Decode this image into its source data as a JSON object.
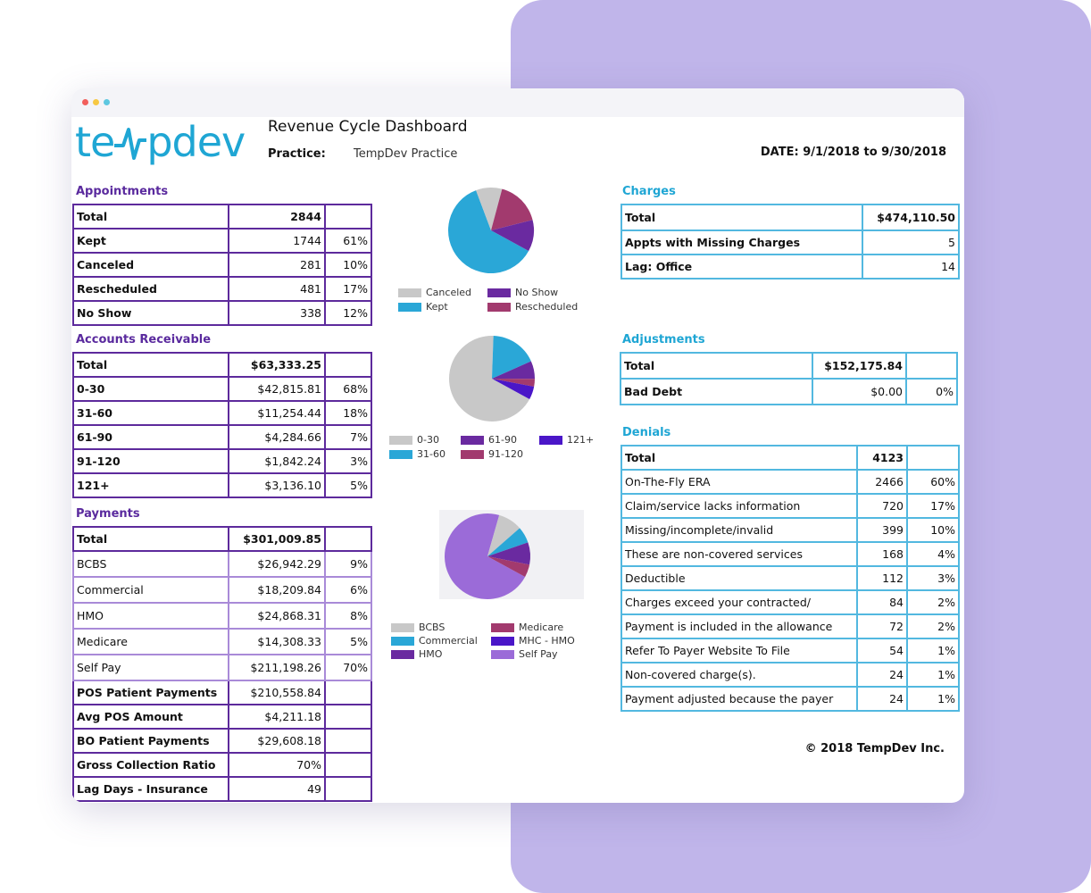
{
  "header": {
    "logo_text_left": "te",
    "logo_text_right": "pdev",
    "title": "Revenue Cycle Dashboard",
    "practice_label": "Practice:",
    "practice_value": "TempDev Practice",
    "date": "DATE: 9/1/2018 to 9/30/2018"
  },
  "colors": {
    "canceled": "#c8c8c8",
    "kept": "#2aa7d7",
    "no_show": "#6a2aa0",
    "rescheduled": "#a23a6e",
    "bucket_121": "#4a16c8",
    "self_pay": "#9b6bd8",
    "accent_purple": "#5d2a9c",
    "accent_blue": "#52b8e0"
  },
  "appointments": {
    "title": "Appointments",
    "rows": [
      {
        "label": "Total",
        "value": "2844",
        "pct": ""
      },
      {
        "label": "Kept",
        "value": "1744",
        "pct": "61%"
      },
      {
        "label": "Canceled",
        "value": "281",
        "pct": "10%"
      },
      {
        "label": "Rescheduled",
        "value": "481",
        "pct": "17%"
      },
      {
        "label": "No Show",
        "value": "338",
        "pct": "12%"
      }
    ],
    "legend": [
      "Canceled",
      "No Show",
      "Kept",
      "Rescheduled"
    ]
  },
  "ar": {
    "title": "Accounts Receivable",
    "rows": [
      {
        "label": "Total",
        "value": "$63,333.25",
        "pct": ""
      },
      {
        "label": "0-30",
        "value": "$42,815.81",
        "pct": "68%"
      },
      {
        "label": "31-60",
        "value": "$11,254.44",
        "pct": "18%"
      },
      {
        "label": "61-90",
        "value": "$4,284.66",
        "pct": "7%"
      },
      {
        "label": "91-120",
        "value": "$1,842.24",
        "pct": "3%"
      },
      {
        "label": "121+",
        "value": "$3,136.10",
        "pct": "5%"
      }
    ],
    "legend": [
      "0-30",
      "61-90",
      "121+",
      "31-60",
      "91-120"
    ]
  },
  "payments": {
    "title": "Payments",
    "rows": [
      {
        "label": "Total",
        "value": "$301,009.85",
        "pct": ""
      },
      {
        "label": "BCBS",
        "value": "$26,942.29",
        "pct": "9%"
      },
      {
        "label": "Commercial",
        "value": "$18,209.84",
        "pct": "6%"
      },
      {
        "label": "HMO",
        "value": "$24,868.31",
        "pct": "8%"
      },
      {
        "label": "Medicare",
        "value": "$14,308.33",
        "pct": "5%"
      },
      {
        "label": "Self Pay",
        "value": "$211,198.26",
        "pct": "70%"
      },
      {
        "label": "POS Patient Payments",
        "value": "$210,558.84",
        "pct": ""
      },
      {
        "label": "Avg POS Amount",
        "value": "$4,211.18",
        "pct": ""
      },
      {
        "label": "BO Patient Payments",
        "value": "$29,608.18",
        "pct": ""
      },
      {
        "label": "Gross Collection Ratio",
        "value": "70%",
        "pct": ""
      },
      {
        "label": "Lag Days - Insurance",
        "value": "49",
        "pct": ""
      }
    ],
    "legend": [
      "BCBS",
      "Medicare",
      "Commercial",
      "MHC - HMO",
      "HMO",
      "Self Pay"
    ]
  },
  "charges": {
    "title": "Charges",
    "rows": [
      {
        "label": "Total",
        "value": "$474,110.50"
      },
      {
        "label": "Appts with Missing Charges",
        "value": "5"
      },
      {
        "label": "Lag: Office",
        "value": "14"
      }
    ]
  },
  "adjustments": {
    "title": "Adjustments",
    "rows": [
      {
        "label": "Total",
        "value": "$152,175.84",
        "pct": ""
      },
      {
        "label": "Bad Debt",
        "value": "$0.00",
        "pct": "0%"
      }
    ]
  },
  "denials": {
    "title": "Denials",
    "rows": [
      {
        "label": "Total",
        "value": "4123",
        "pct": ""
      },
      {
        "label": "On-The-Fly ERA",
        "value": "2466",
        "pct": "60%"
      },
      {
        "label": "Claim/service lacks information",
        "value": "720",
        "pct": "17%"
      },
      {
        "label": "Missing/incomplete/invalid",
        "value": "399",
        "pct": "10%"
      },
      {
        "label": "These are non-covered services",
        "value": "168",
        "pct": "4%"
      },
      {
        "label": "Deductible",
        "value": "112",
        "pct": "3%"
      },
      {
        "label": "Charges exceed your contracted/",
        "value": "84",
        "pct": "2%"
      },
      {
        "label": "Payment is included in the allowance",
        "value": "72",
        "pct": "2%"
      },
      {
        "label": "Refer To Payer Website To File",
        "value": "54",
        "pct": "1%"
      },
      {
        "label": "Non-covered charge(s).",
        "value": "24",
        "pct": "1%"
      },
      {
        "label": "Payment adjusted because the payer",
        "value": "24",
        "pct": "1%"
      }
    ]
  },
  "footer": {
    "copyright": "© 2018 TempDev Inc."
  },
  "chart_data": [
    {
      "type": "pie",
      "categories": [
        "Kept",
        "Canceled",
        "Rescheduled",
        "No Show"
      ],
      "values": [
        1744,
        281,
        481,
        338
      ],
      "colors": [
        "#2aa7d7",
        "#c8c8c8",
        "#a23a6e",
        "#6a2aa0"
      ]
    },
    {
      "type": "pie",
      "categories": [
        "0-30",
        "31-60",
        "61-90",
        "91-120",
        "121+"
      ],
      "values": [
        42815.81,
        11254.44,
        4284.66,
        1842.24,
        3136.1
      ],
      "colors": [
        "#c8c8c8",
        "#2aa7d7",
        "#6a2aa0",
        "#a23a6e",
        "#4a16c8"
      ]
    },
    {
      "type": "pie",
      "categories": [
        "Self Pay",
        "BCBS",
        "Commercial",
        "HMO",
        "Medicare"
      ],
      "values": [
        211198.26,
        26942.29,
        18209.84,
        24868.31,
        14308.33
      ],
      "colors": [
        "#9b6bd8",
        "#c8c8c8",
        "#2aa7d7",
        "#6a2aa0",
        "#a23a6e"
      ]
    }
  ]
}
